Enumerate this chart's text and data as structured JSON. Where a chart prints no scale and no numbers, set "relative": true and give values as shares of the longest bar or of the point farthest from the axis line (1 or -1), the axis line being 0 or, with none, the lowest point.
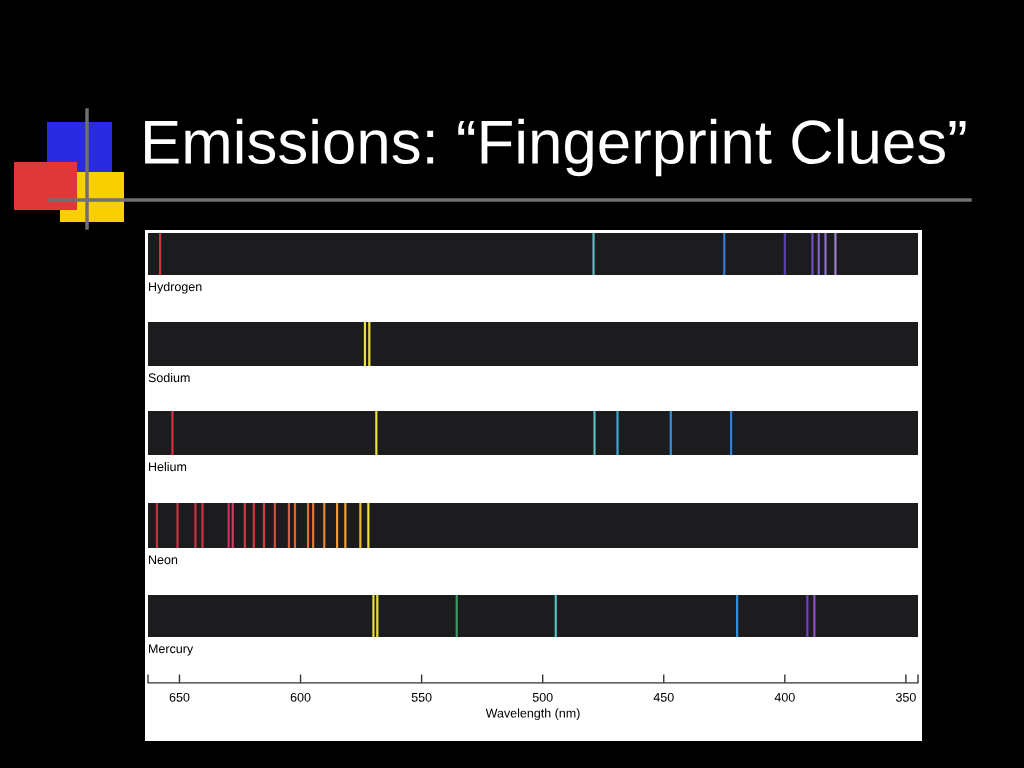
{
  "chart_data": [
    {
      "type": "other",
      "title": "Emissions: “Fingerprint Clues”"
    },
    {
      "type": "bar",
      "title": "Hydrogen",
      "relative": true,
      "tick_labels": false,
      "xlim": [
        663,
        345
      ],
      "x": [
        658,
        479,
        425,
        400,
        388.6,
        386,
        383.2,
        379.1
      ],
      "values": [
        1,
        1,
        1,
        1,
        1,
        1,
        1,
        1
      ],
      "colors": [
        "#c83a3a",
        "#60b8c0",
        "#3a78d0",
        "#5a40b0",
        "#7050c0",
        "#8060c8",
        "#9070c8",
        "#a080c8"
      ]
    },
    {
      "type": "bar",
      "title": "Sodium",
      "relative": true,
      "tick_labels": false,
      "xlim": [
        663,
        345
      ],
      "x": [
        573.4,
        571.6
      ],
      "values": [
        1,
        1
      ],
      "colors": [
        "#e8e040",
        "#e8e040"
      ]
    },
    {
      "type": "bar",
      "title": "Helium",
      "relative": true,
      "tick_labels": false,
      "xlim": [
        663,
        345
      ],
      "x": [
        652.9,
        568.7,
        478.6,
        469.1,
        447.1,
        422.2
      ],
      "values": [
        1,
        1,
        1,
        1,
        1,
        1
      ],
      "colors": [
        "#d83040",
        "#e8e040",
        "#60c0c0",
        "#40a8d0",
        "#3090e0",
        "#3080e0"
      ]
    },
    {
      "type": "bar",
      "title": "Neon",
      "relative": true,
      "tick_labels": false,
      "xlim": [
        663,
        345
      ],
      "x": [
        659.3,
        650.8,
        643.4,
        640.5,
        629.7,
        628,
        623,
        619.3,
        615.1,
        610.6,
        604.8,
        602.3,
        596.9,
        594.8,
        590.2,
        584.9,
        581.5,
        575.3,
        572
      ],
      "values": [
        1,
        1,
        1,
        1,
        1,
        1,
        1,
        1,
        1,
        1,
        1,
        1,
        1,
        1,
        1,
        1,
        1,
        1,
        1
      ],
      "colors": [
        "#c8303c",
        "#d03040",
        "#d03048",
        "#d03048",
        "#c83060",
        "#c84060",
        "#d03848",
        "#d03840",
        "#d04040",
        "#d05038",
        "#d86038",
        "#d86838",
        "#e07038",
        "#e07838",
        "#e88838",
        "#f09838",
        "#f0a038",
        "#f0b838",
        "#f0e040"
      ]
    },
    {
      "type": "bar",
      "title": "Mercury",
      "relative": true,
      "xlabel": "Wavelength (nm)",
      "xlim": [
        663,
        345
      ],
      "xticks": [
        {
          "value": 663,
          "label": null
        },
        650,
        600,
        550,
        500,
        450,
        400,
        350,
        {
          "value": 345,
          "label": null
        }
      ],
      "x": [
        569.9,
        568.3,
        535.5,
        494.6,
        419.7,
        390.7,
        387.8
      ],
      "values": [
        1,
        1,
        1,
        1,
        1,
        1,
        1
      ],
      "colors": [
        "#e8e040",
        "#e8e040",
        "#3a9a60",
        "#50c0c0",
        "#3090e0",
        "#7040c0",
        "#9050c0"
      ]
    }
  ]
}
